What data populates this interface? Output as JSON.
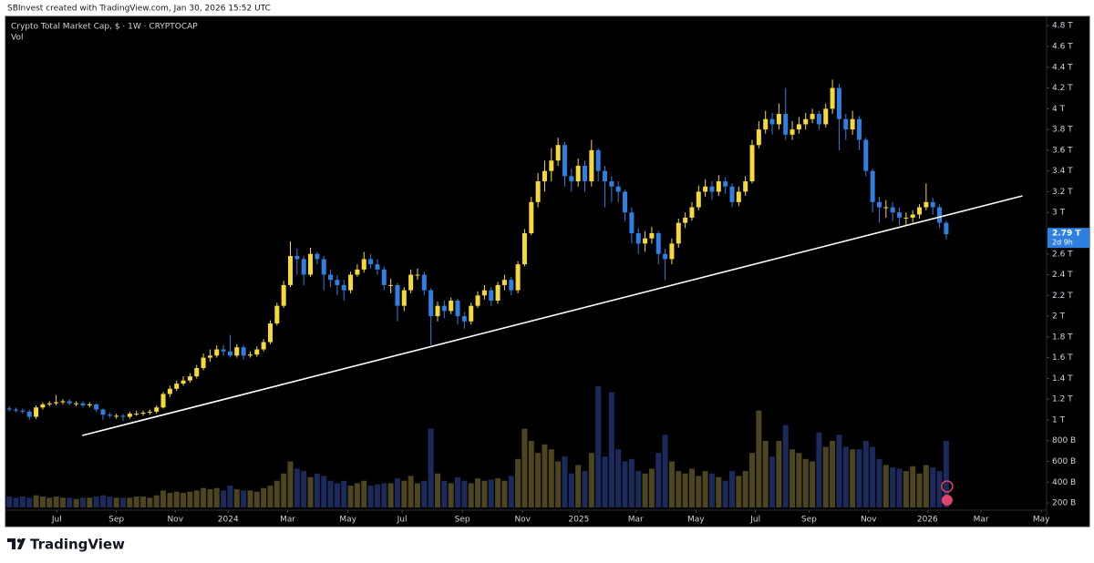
{
  "header": {
    "text": "SBInvest created with TradingView.com, Jan 30, 2026 15:52 UTC"
  },
  "footer": {
    "logo_text": "TradingView"
  },
  "chart_data": {
    "type": "candlestick",
    "title": "Crypto Total Market Cap, $ · 1W · CRYPTOCAP",
    "up_color": "#f5d93b",
    "down_color": "#2f7fe0",
    "x": [
      0,
      1,
      2,
      3,
      4,
      5,
      6,
      7,
      8,
      9,
      10,
      11,
      12,
      13,
      14,
      15,
      16,
      17,
      18,
      19,
      20,
      21,
      22,
      23,
      24,
      25,
      26,
      27,
      28,
      29,
      30,
      31,
      32,
      33,
      34,
      35,
      36,
      37,
      38,
      39,
      40,
      41,
      42,
      43,
      44,
      45,
      46,
      47,
      48,
      49,
      50,
      51,
      52,
      53,
      54,
      55,
      56,
      57,
      58,
      59,
      60,
      61,
      62,
      63,
      64,
      65,
      66,
      67,
      68,
      69,
      70,
      71,
      72,
      73,
      74,
      75,
      76,
      77,
      78,
      79,
      80,
      81,
      82,
      83,
      84,
      85,
      86,
      87,
      88,
      89,
      90,
      91,
      92,
      93,
      94,
      95,
      96,
      97,
      98,
      99,
      100,
      101,
      102,
      103,
      104,
      105,
      106,
      107,
      108,
      109,
      110,
      111,
      112,
      113,
      114,
      115,
      116,
      117,
      118,
      119,
      120,
      121,
      122,
      123,
      124,
      125,
      126,
      127,
      128,
      129,
      130,
      131,
      132,
      133,
      134,
      135,
      136,
      137,
      138,
      139,
      140
    ],
    "open": [
      1.11,
      1.1,
      1.09,
      1.08,
      1.03,
      1.12,
      1.15,
      1.16,
      1.17,
      1.18,
      1.16,
      1.16,
      1.14,
      1.15,
      1.1,
      1.05,
      1.04,
      1.04,
      1.03,
      1.06,
      1.06,
      1.07,
      1.08,
      1.12,
      1.25,
      1.3,
      1.35,
      1.38,
      1.42,
      1.5,
      1.6,
      1.62,
      1.68,
      1.66,
      1.62,
      1.7,
      1.62,
      1.63,
      1.68,
      1.75,
      1.93,
      2.1,
      2.3,
      2.58,
      2.55,
      2.4,
      2.6,
      2.55,
      2.4,
      2.35,
      2.3,
      2.25,
      2.4,
      2.45,
      2.55,
      2.5,
      2.45,
      2.3,
      2.3,
      2.1,
      2.25,
      2.4,
      2.4,
      2.25,
      2.0,
      2.1,
      2.05,
      2.15,
      2.0,
      1.95,
      2.1,
      2.2,
      2.25,
      2.15,
      2.3,
      2.35,
      2.25,
      2.5,
      2.8,
      3.1,
      3.3,
      3.4,
      3.5,
      3.65,
      3.35,
      3.3,
      3.45,
      3.3,
      3.6,
      3.4,
      3.3,
      3.25,
      3.2,
      3.0,
      2.8,
      2.7,
      2.75,
      2.8,
      2.6,
      2.55,
      2.7,
      2.9,
      2.95,
      3.05,
      3.2,
      3.25,
      3.2,
      3.3,
      3.25,
      3.1,
      3.2,
      3.3,
      3.65,
      3.8,
      3.9,
      3.85,
      3.95,
      3.75,
      3.8,
      3.85,
      3.9,
      3.95,
      3.85,
      4.0,
      4.2,
      3.9,
      3.8,
      3.9,
      3.7,
      3.4,
      3.1,
      3.05,
      3.05,
      3.0,
      2.95,
      2.95,
      2.98,
      3.05,
      3.1,
      3.05,
      2.9
    ],
    "high": [
      1.13,
      1.12,
      1.11,
      1.1,
      1.14,
      1.17,
      1.18,
      1.24,
      1.2,
      1.2,
      1.18,
      1.18,
      1.17,
      1.16,
      1.11,
      1.07,
      1.06,
      1.06,
      1.08,
      1.09,
      1.09,
      1.1,
      1.14,
      1.27,
      1.33,
      1.38,
      1.42,
      1.45,
      1.53,
      1.64,
      1.68,
      1.72,
      1.72,
      1.82,
      1.73,
      1.72,
      1.66,
      1.71,
      1.78,
      1.96,
      2.13,
      2.34,
      2.72,
      2.65,
      2.58,
      2.66,
      2.62,
      2.58,
      2.45,
      2.4,
      2.35,
      2.43,
      2.5,
      2.62,
      2.6,
      2.55,
      2.48,
      2.36,
      2.32,
      2.28,
      2.45,
      2.46,
      2.43,
      2.27,
      2.14,
      2.15,
      2.18,
      2.17,
      2.04,
      2.13,
      2.24,
      2.3,
      2.28,
      2.33,
      2.4,
      2.38,
      2.53,
      2.84,
      3.15,
      3.38,
      3.5,
      3.62,
      3.72,
      3.68,
      3.42,
      3.52,
      3.5,
      3.7,
      3.62,
      3.45,
      3.35,
      3.3,
      3.22,
      3.05,
      2.85,
      2.82,
      2.86,
      2.82,
      2.65,
      2.75,
      2.94,
      3.0,
      3.1,
      3.26,
      3.32,
      3.3,
      3.36,
      3.34,
      3.28,
      3.25,
      3.35,
      3.7,
      3.88,
      3.98,
      3.96,
      4.05,
      4.2,
      3.88,
      3.92,
      3.96,
      4.0,
      3.98,
      4.05,
      4.28,
      4.24,
      3.95,
      3.98,
      3.93,
      3.72,
      3.42,
      3.15,
      3.12,
      3.1,
      3.05,
      3.0,
      3.02,
      3.08,
      3.28,
      3.14,
      3.08,
      2.92
    ],
    "low": [
      1.08,
      1.07,
      1.06,
      1.0,
      1.01,
      1.1,
      1.13,
      1.14,
      1.15,
      1.14,
      1.13,
      1.12,
      1.12,
      1.08,
      1.0,
      1.02,
      1.01,
      0.99,
      1.01,
      1.04,
      1.04,
      1.05,
      1.06,
      1.11,
      1.22,
      1.28,
      1.33,
      1.36,
      1.4,
      1.48,
      1.56,
      1.6,
      1.62,
      1.6,
      1.6,
      1.58,
      1.6,
      1.61,
      1.66,
      1.73,
      1.91,
      2.08,
      2.28,
      2.4,
      2.3,
      2.38,
      2.5,
      2.25,
      2.28,
      2.2,
      2.15,
      2.22,
      2.38,
      2.42,
      2.46,
      2.4,
      2.25,
      2.22,
      1.95,
      2.05,
      2.22,
      2.35,
      2.2,
      1.72,
      1.95,
      1.98,
      2.02,
      1.92,
      1.88,
      1.92,
      2.08,
      2.16,
      2.1,
      2.12,
      2.25,
      2.2,
      2.22,
      2.48,
      2.78,
      3.05,
      3.2,
      3.3,
      3.45,
      3.25,
      3.2,
      3.25,
      3.2,
      3.25,
      3.3,
      3.05,
      3.1,
      3.1,
      2.92,
      2.7,
      2.6,
      2.62,
      2.7,
      2.5,
      2.35,
      2.5,
      2.66,
      2.85,
      2.92,
      3.02,
      3.15,
      3.12,
      3.16,
      3.18,
      3.05,
      3.06,
      3.16,
      3.28,
      3.62,
      3.76,
      3.75,
      3.8,
      3.7,
      3.7,
      3.76,
      3.8,
      3.86,
      3.8,
      3.82,
      3.95,
      3.6,
      3.7,
      3.75,
      3.6,
      3.35,
      3.0,
      2.9,
      2.95,
      2.92,
      2.88,
      2.88,
      2.9,
      2.94,
      3.02,
      2.98,
      2.85,
      2.74
    ],
    "close": [
      1.1,
      1.09,
      1.08,
      1.03,
      1.12,
      1.15,
      1.16,
      1.17,
      1.18,
      1.16,
      1.16,
      1.14,
      1.15,
      1.1,
      1.05,
      1.04,
      1.04,
      1.03,
      1.06,
      1.06,
      1.07,
      1.08,
      1.12,
      1.25,
      1.3,
      1.35,
      1.38,
      1.42,
      1.5,
      1.6,
      1.62,
      1.68,
      1.66,
      1.62,
      1.7,
      1.62,
      1.63,
      1.68,
      1.75,
      1.93,
      2.1,
      2.3,
      2.58,
      2.55,
      2.4,
      2.6,
      2.55,
      2.4,
      2.35,
      2.3,
      2.25,
      2.4,
      2.45,
      2.55,
      2.5,
      2.45,
      2.3,
      2.3,
      2.1,
      2.25,
      2.4,
      2.4,
      2.25,
      2.0,
      2.1,
      2.05,
      2.15,
      2.0,
      1.95,
      2.1,
      2.2,
      2.25,
      2.15,
      2.3,
      2.35,
      2.25,
      2.5,
      2.8,
      3.1,
      3.3,
      3.4,
      3.5,
      3.65,
      3.35,
      3.3,
      3.45,
      3.3,
      3.6,
      3.4,
      3.3,
      3.25,
      3.2,
      3.0,
      2.8,
      2.7,
      2.75,
      2.8,
      2.6,
      2.55,
      2.7,
      2.9,
      2.95,
      3.05,
      3.2,
      3.25,
      3.2,
      3.3,
      3.25,
      3.1,
      3.2,
      3.3,
      3.65,
      3.8,
      3.9,
      3.85,
      3.95,
      3.75,
      3.8,
      3.85,
      3.9,
      3.95,
      3.85,
      4.0,
      4.2,
      3.9,
      3.8,
      3.9,
      3.7,
      3.4,
      3.1,
      3.05,
      3.05,
      3.0,
      2.95,
      2.95,
      2.98,
      3.05,
      3.1,
      3.05,
      2.9,
      2.79
    ],
    "volume": {
      "name": "Vol",
      "axis": "y2",
      "up_color": "#4d4420",
      "down_color": "#1b2a5a",
      "values": [
        9,
        8,
        9,
        8,
        10,
        9,
        8,
        9,
        8,
        8,
        7,
        8,
        8,
        9,
        10,
        9,
        8,
        8,
        8,
        9,
        9,
        8,
        10,
        14,
        12,
        13,
        12,
        13,
        14,
        16,
        15,
        16,
        14,
        18,
        15,
        14,
        14,
        13,
        16,
        18,
        22,
        28,
        38,
        32,
        30,
        25,
        28,
        26,
        22,
        20,
        22,
        18,
        20,
        22,
        18,
        19,
        20,
        20,
        24,
        22,
        26,
        20,
        22,
        65,
        28,
        22,
        20,
        25,
        22,
        20,
        24,
        22,
        23,
        24,
        22,
        26,
        40,
        65,
        55,
        45,
        52,
        48,
        38,
        42,
        28,
        35,
        30,
        45,
        100,
        42,
        95,
        48,
        38,
        40,
        30,
        28,
        32,
        45,
        60,
        38,
        30,
        28,
        32,
        26,
        30,
        28,
        25,
        22,
        30,
        26,
        30,
        45,
        80,
        55,
        42,
        55,
        68,
        48,
        45,
        40,
        38,
        62,
        50,
        55,
        60,
        50,
        48,
        48,
        55,
        50,
        40,
        35,
        33,
        32,
        30,
        34,
        28,
        35,
        33,
        30,
        55
      ]
    },
    "y2lim": [
      0,
      100
    ],
    "xlim": [
      -0.3,
      155
    ],
    "xticks": [
      {
        "value": 7.1,
        "label": "Jul"
      },
      {
        "value": 16.0,
        "label": "Sep"
      },
      {
        "value": 24.8,
        "label": "Nov"
      },
      {
        "value": 32.7,
        "label": "2024"
      },
      {
        "value": 41.6,
        "label": "Mar"
      },
      {
        "value": 50.6,
        "label": "May"
      },
      {
        "value": 58.7,
        "label": "Jul"
      },
      {
        "value": 67.7,
        "label": "Sep"
      },
      {
        "value": 76.7,
        "label": "Nov"
      },
      {
        "value": 85.1,
        "label": "2025"
      },
      {
        "value": 93.6,
        "label": "Mar"
      },
      {
        "value": 102.6,
        "label": "May"
      },
      {
        "value": 111.5,
        "label": "Jul"
      },
      {
        "value": 119.5,
        "label": "Sep"
      },
      {
        "value": 128.4,
        "label": "Nov"
      },
      {
        "value": 137.2,
        "label": "2026"
      },
      {
        "value": 145.2,
        "label": "Mar"
      },
      {
        "value": 154.2,
        "label": "May"
      }
    ],
    "ylim": [
      0.13,
      4.89
    ],
    "yticks": [
      {
        "value": 4.8,
        "label": "4.8 T"
      },
      {
        "value": 4.6,
        "label": "4.6 T"
      },
      {
        "value": 4.4,
        "label": "4.4 T"
      },
      {
        "value": 4.2,
        "label": "4.2 T"
      },
      {
        "value": 4,
        "label": "4 T"
      },
      {
        "value": 3.8,
        "label": "3.8 T"
      },
      {
        "value": 3.6,
        "label": "3.6 T"
      },
      {
        "value": 3.4,
        "label": "3.4 T"
      },
      {
        "value": 3.2,
        "label": "3.2 T"
      },
      {
        "value": 3,
        "label": "3 T"
      },
      {
        "value": 2.6,
        "label": "2.6 T"
      },
      {
        "value": 2.4,
        "label": "2.4 T"
      },
      {
        "value": 2.2,
        "label": "2.2 T"
      },
      {
        "value": 2,
        "label": "2 T"
      },
      {
        "value": 1.8,
        "label": "1.8 T"
      },
      {
        "value": 1.6,
        "label": "1.6 T"
      },
      {
        "value": 1.4,
        "label": "1.4 T"
      },
      {
        "value": 1.2,
        "label": "1.2 T"
      },
      {
        "value": 1,
        "label": "1 T"
      },
      {
        "value": 0.8,
        "label": "800 B"
      },
      {
        "value": 0.6,
        "label": "600 B"
      },
      {
        "value": 0.4,
        "label": "400 B"
      },
      {
        "value": 0.2,
        "label": "200 B"
      }
    ],
    "last_price_label": "2.79 T",
    "countdown": "2d 9h",
    "trendline": {
      "x": [
        10.9,
        151.4
      ],
      "y": [
        0.85,
        3.16
      ],
      "color": "#ffffff"
    }
  }
}
